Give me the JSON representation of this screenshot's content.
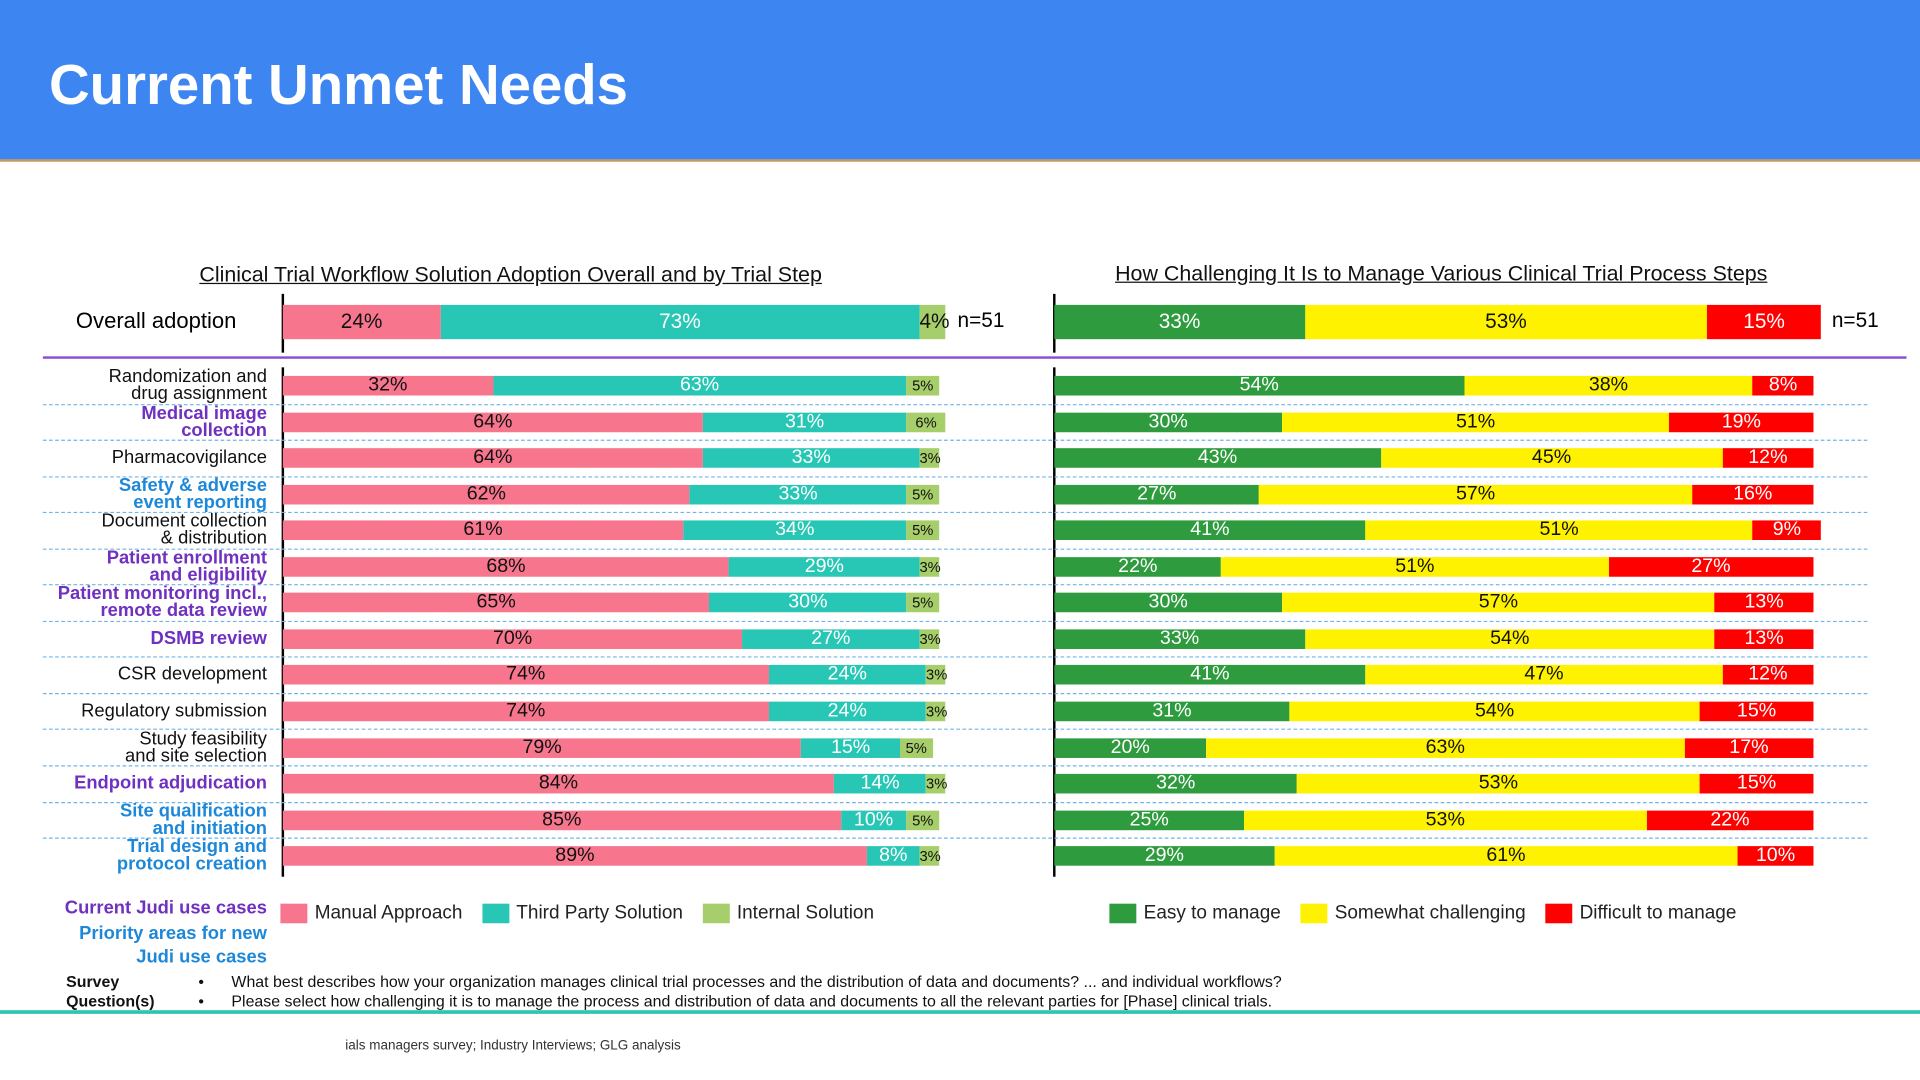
{
  "header": {
    "title": "Current Unmet Needs"
  },
  "colors": {
    "manual": "#f7768e",
    "third_party": "#28c7b5",
    "internal": "#a6ce6a",
    "easy": "#2e9b3e",
    "somewhat": "#fff200",
    "difficult": "#ff0000",
    "current_judi": "#7030c0",
    "priority": "#1e88d8"
  },
  "chart_data": [
    {
      "type": "bar",
      "orientation": "horizontal",
      "stacked": true,
      "title": "Clinical Trial Workflow Solution Adoption Overall and by Trial Step",
      "overall": {
        "label": "Overall adoption",
        "values": [
          24,
          73,
          4
        ],
        "n": "n=51"
      },
      "series_names": [
        "Manual Approach",
        "Third Party Solution",
        "Internal Solution"
      ],
      "categories": [
        "Randomization and\ndrug assignment",
        "Medical image\ncollection",
        "Pharmacovigilance",
        "Safety & adverse\nevent reporting",
        "Document collection\n& distribution",
        "Patient enrollment\nand eligibility",
        "Patient monitoring incl.,\nremote data review",
        "DSMB review",
        "CSR development",
        "Regulatory submission",
        "Study feasibility\nand site selection",
        "Endpoint adjudication",
        "Site qualification\nand initiation",
        "Trial design and\nprotocol creation"
      ],
      "category_type": [
        "plain",
        "current",
        "plain",
        "priority",
        "plain",
        "current",
        "current",
        "current",
        "plain",
        "plain",
        "plain",
        "current",
        "priority",
        "priority"
      ],
      "values": [
        [
          32,
          63,
          5
        ],
        [
          64,
          31,
          6
        ],
        [
          64,
          33,
          3
        ],
        [
          62,
          33,
          5
        ],
        [
          61,
          34,
          5
        ],
        [
          68,
          29,
          3
        ],
        [
          65,
          30,
          5
        ],
        [
          70,
          27,
          3
        ],
        [
          74,
          24,
          3
        ],
        [
          74,
          24,
          3
        ],
        [
          79,
          15,
          5
        ],
        [
          84,
          14,
          3
        ],
        [
          85,
          10,
          5
        ],
        [
          89,
          8,
          3
        ]
      ]
    },
    {
      "type": "bar",
      "orientation": "horizontal",
      "stacked": true,
      "title": "How Challenging It Is to Manage Various Clinical Trial Process Steps",
      "overall": {
        "values": [
          33,
          53,
          15
        ],
        "n": "n=51"
      },
      "series_names": [
        "Easy to manage",
        "Somewhat challenging",
        "Difficult to manage"
      ],
      "values": [
        [
          54,
          38,
          8
        ],
        [
          30,
          51,
          19
        ],
        [
          43,
          45,
          12
        ],
        [
          27,
          57,
          16
        ],
        [
          41,
          51,
          9
        ],
        [
          22,
          51,
          27
        ],
        [
          30,
          57,
          13
        ],
        [
          33,
          54,
          13
        ],
        [
          41,
          47,
          12
        ],
        [
          31,
          54,
          15
        ],
        [
          20,
          63,
          17
        ],
        [
          32,
          53,
          15
        ],
        [
          25,
          53,
          22
        ],
        [
          29,
          61,
          10
        ]
      ]
    }
  ],
  "key": {
    "current": "Current Judi use cases",
    "priority": "Priority areas for new\nJudi use cases"
  },
  "survey": {
    "label1": "Survey",
    "label2": "Question(s)",
    "bullet": "•",
    "q1": "What best describes how your organization manages clinical trial processes and the distribution of data and documents? ... and individual workflows?",
    "q2": "Please select how challenging it is to manage the process and distribution of data and documents to all the relevant parties for [Phase] clinical trials."
  },
  "source": "ials managers survey; Industry Interviews; GLG analysis"
}
